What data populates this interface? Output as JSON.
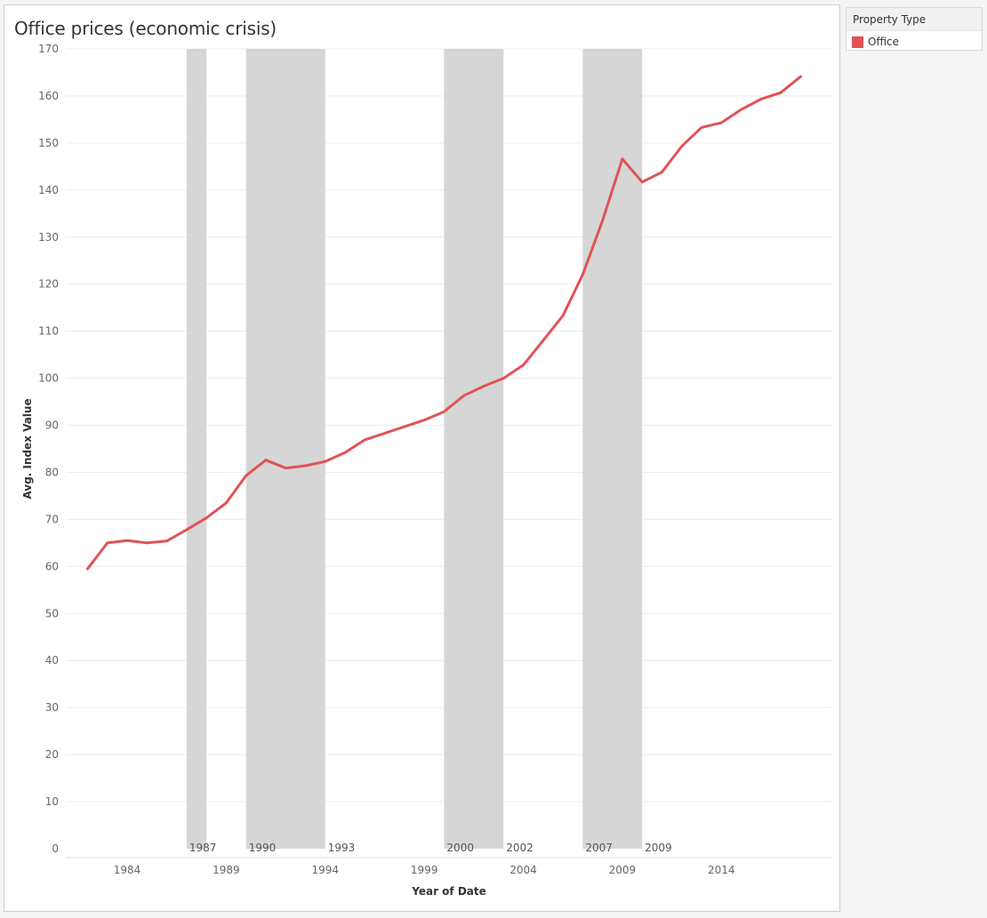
{
  "colors": {
    "series": "#e05355",
    "crisis_band": "#d6d6d6",
    "gridline": "#ececec"
  },
  "legend": {
    "title": "Property Type",
    "items": [
      {
        "label": "Office",
        "color": "#e05355"
      }
    ]
  },
  "chart_data": {
    "type": "line",
    "title": "Office prices (economic crisis)",
    "xlabel": "Year of Date",
    "ylabel": "Avg. Index Value",
    "xlim": [
      1980.9,
      2019.6
    ],
    "ylim": [
      0,
      170
    ],
    "x_ticks": [
      1984,
      1989,
      1994,
      1999,
      2004,
      2009,
      2014
    ],
    "y_ticks": [
      0,
      10,
      20,
      30,
      40,
      50,
      60,
      70,
      80,
      90,
      100,
      110,
      120,
      130,
      140,
      150,
      160,
      170
    ],
    "grid": true,
    "legend_position": "right",
    "series": [
      {
        "name": "Office",
        "x": [
          1982,
          1983,
          1984,
          1985,
          1986,
          1987,
          1988,
          1989,
          1990,
          1991,
          1992,
          1993,
          1994,
          1995,
          1996,
          1997,
          1998,
          1999,
          2000,
          2001,
          2002,
          2003,
          2004,
          2005,
          2006,
          2007,
          2008,
          2009,
          2010,
          2011,
          2012,
          2013,
          2014,
          2015,
          2016,
          2017,
          2018
        ],
        "values": [
          59.5,
          65.0,
          65.5,
          65.0,
          65.4,
          67.8,
          70.3,
          73.5,
          79.3,
          82.6,
          80.9,
          81.4,
          82.3,
          84.2,
          86.9,
          88.3,
          89.7,
          91.1,
          92.9,
          96.3,
          98.3,
          100.0,
          102.8,
          108.0,
          113.3,
          122.0,
          133.5,
          146.6,
          141.7,
          143.8,
          149.3,
          153.3,
          154.3,
          157.1,
          159.3,
          160.7,
          164.1
        ]
      }
    ],
    "crisis_periods": [
      {
        "start": 1987,
        "end": 1988,
        "label": "1987"
      },
      {
        "start": 1990,
        "end": 1994,
        "label": "1990",
        "end_label": "1993"
      },
      {
        "start": 2000,
        "end": 2003,
        "label": "2000",
        "end_label": "2002"
      },
      {
        "start": 2007,
        "end": 2010,
        "label": "2007",
        "end_label": "2009"
      }
    ]
  }
}
